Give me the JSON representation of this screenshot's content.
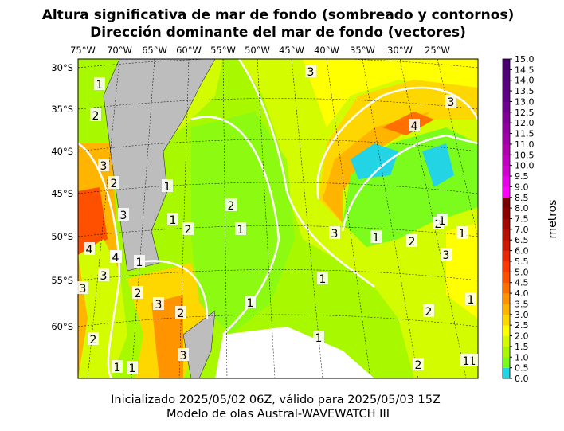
{
  "header": {
    "title": "Altura significativa de mar de fondo (sombreado y contornos)",
    "subtitle": "Dirección dominante del mar de fondo (vectores)"
  },
  "footer": {
    "line1": "Inicializado 2025/05/02 06Z, válido para 2025/05/03 15Z",
    "line2": "Modelo de olas Austral-WAVEWATCH III"
  },
  "map": {
    "lon_labels": [
      "75°W",
      "70°W",
      "65°W",
      "60°W",
      "55°W",
      "50°W",
      "45°W",
      "40°W",
      "35°W",
      "30°W",
      "25°W"
    ],
    "lat_labels": [
      "30°S",
      "35°S",
      "40°S",
      "45°S",
      "50°S",
      "55°S",
      "60°S"
    ],
    "contour_labels": [
      "1",
      "2",
      "3",
      "2",
      "1",
      "2",
      "1",
      "1",
      "1",
      "2",
      "3",
      "4",
      "3",
      "1",
      "2",
      "1",
      "3",
      "1",
      "3",
      "4",
      "4",
      "1",
      "3",
      "3",
      "2",
      "3",
      "2",
      "2",
      "1",
      "1",
      "1",
      "2",
      "2",
      "1",
      "2",
      "1",
      "3",
      "1",
      "4",
      "1",
      "3"
    ]
  },
  "colorbar": {
    "label": "metros",
    "ticks": [
      "0.0",
      "0.5",
      "1.0",
      "1.5",
      "2.0",
      "2.5",
      "3.0",
      "3.5",
      "4.0",
      "4.5",
      "5.0",
      "5.5",
      "6.0",
      "6.5",
      "7.0",
      "7.5",
      "8.0",
      "8.5",
      "9.0",
      "9.5",
      "10.0",
      "10.5",
      "11.0",
      "11.5",
      "12.0",
      "12.5",
      "13.0",
      "13.5",
      "14.0",
      "14.5",
      "15.0"
    ],
    "colors": [
      "#22d4e4",
      "#7cfc1c",
      "#a8f800",
      "#d4fc00",
      "#ffff00",
      "#ffd700",
      "#ffb400",
      "#ff9400",
      "#ff7000",
      "#ff5000",
      "#ff3800",
      "#e82800",
      "#d01800",
      "#b81000",
      "#a00800",
      "#8c0000",
      "#780000",
      "#ff00ff",
      "#e800e8",
      "#d000d0",
      "#c000c0",
      "#b000b0",
      "#a000a8",
      "#9000a0",
      "#800098",
      "#700090",
      "#600088",
      "#580080",
      "#500078",
      "#480070"
    ]
  }
}
